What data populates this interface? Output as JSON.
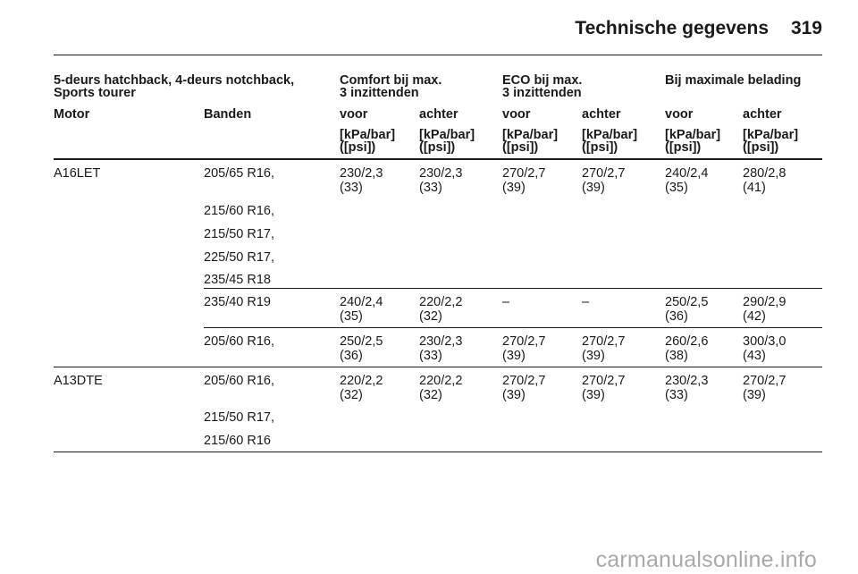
{
  "header": {
    "title": "Technische gegevens",
    "page_number": "319"
  },
  "table": {
    "group_headers": {
      "vehicle": [
        "5-deurs hatchback, 4-deurs notchback,",
        "Sports tourer"
      ],
      "comfort": [
        "Comfort bij max.",
        "3 inzittenden"
      ],
      "eco": [
        "ECO bij max.",
        "3 inzittenden"
      ],
      "max_load": [
        "Bij maximale belading"
      ]
    },
    "columns": [
      "Motor",
      "Banden",
      "voor",
      "achter",
      "voor",
      "achter",
      "voor",
      "achter"
    ],
    "unit": [
      "[kPa/bar]",
      "([psi])"
    ],
    "rows": [
      {
        "motor": "A16LET",
        "tyres": [
          "205/65 R16,"
        ],
        "values": [
          [
            "230/2,3",
            "(33)"
          ],
          [
            "230/2,3",
            "(33)"
          ],
          [
            "270/2,7",
            "(39)"
          ],
          [
            "270/2,7",
            "(39)"
          ],
          [
            "240/2,4",
            "(35)"
          ],
          [
            "280/2,8",
            "(41)"
          ]
        ]
      },
      {
        "motor": "",
        "tyres": [
          "215/60 R16,"
        ],
        "values": []
      },
      {
        "motor": "",
        "tyres": [
          "215/50 R17,"
        ],
        "values": []
      },
      {
        "motor": "",
        "tyres": [
          "225/50 R17,"
        ],
        "values": []
      },
      {
        "motor": "",
        "tyres": [
          "235/45 R18"
        ],
        "values": []
      },
      {
        "motor": "",
        "tyres": [
          "235/40 R19"
        ],
        "values": [
          [
            "240/2,4",
            "(35)"
          ],
          [
            "220/2,2",
            "(32)"
          ],
          [
            "–",
            ""
          ],
          [
            "–",
            ""
          ],
          [
            "250/2,5",
            "(36)"
          ],
          [
            "290/2,9",
            "(42)"
          ]
        ]
      },
      {
        "motor": "",
        "tyres": [
          "205/60 R16,"
        ],
        "values": [
          [
            "250/2,5",
            "(36)"
          ],
          [
            "230/2,3",
            "(33)"
          ],
          [
            "270/2,7",
            "(39)"
          ],
          [
            "270/2,7",
            "(39)"
          ],
          [
            "260/2,6",
            "(38)"
          ],
          [
            "300/3,0",
            "(43)"
          ]
        ]
      },
      {
        "motor": "A13DTE",
        "tyres": [
          "205/60 R16,"
        ],
        "values": [
          [
            "220/2,2",
            "(32)"
          ],
          [
            "220/2,2",
            "(32)"
          ],
          [
            "270/2,7",
            "(39)"
          ],
          [
            "270/2,7",
            "(39)"
          ],
          [
            "230/2,3",
            "(33)"
          ],
          [
            "270/2,7",
            "(39)"
          ]
        ]
      },
      {
        "motor": "",
        "tyres": [
          "215/50 R17,"
        ],
        "values": []
      },
      {
        "motor": "",
        "tyres": [
          "215/60 R16"
        ],
        "values": []
      }
    ]
  },
  "watermark": "carmanualsonline.info"
}
